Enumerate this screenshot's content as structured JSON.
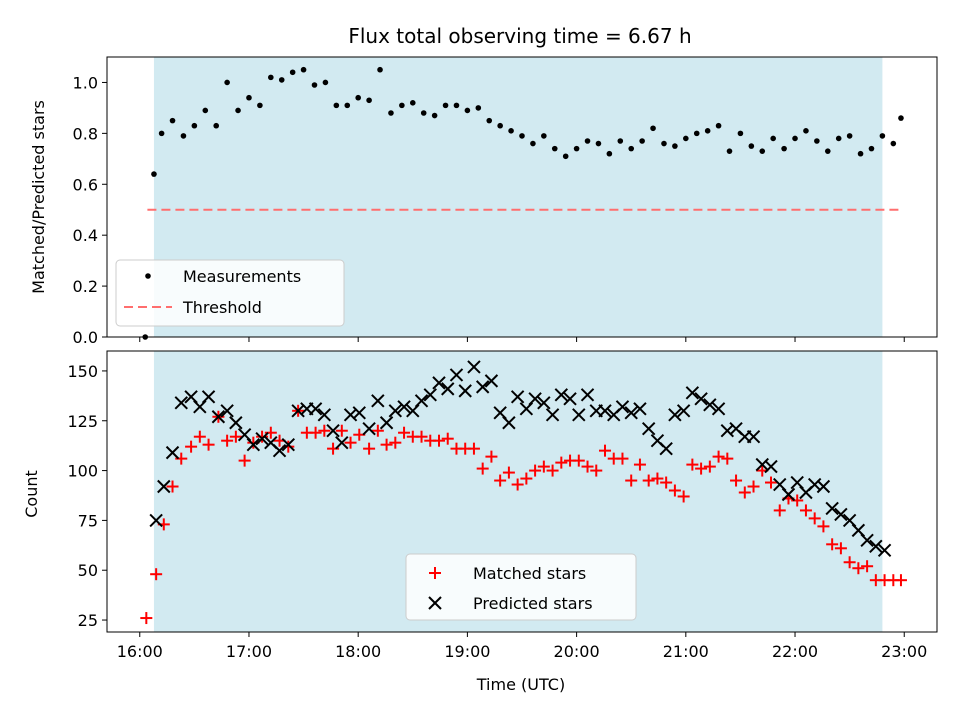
{
  "chart_data": [
    {
      "type": "scatter",
      "title": "Flux total observing time = 6.67 h",
      "ylabel": "Matched/Predicted stars",
      "xlabel": "",
      "ylim": [
        0,
        1.1
      ],
      "yticks": [
        "0.0",
        "0.2",
        "0.4",
        "0.6",
        "0.8",
        "1.0"
      ],
      "shaded_span": [
        16.13,
        22.8
      ],
      "threshold": {
        "name": "Threshold",
        "y": 0.5,
        "x_range": [
          16.07,
          22.97
        ],
        "color": "#ff6e6e"
      },
      "series": [
        {
          "name": "Measurements",
          "color": "#000000",
          "x": [
            16.05,
            16.13,
            16.2,
            16.3,
            16.4,
            16.5,
            16.6,
            16.7,
            16.8,
            16.9,
            17.0,
            17.1,
            17.2,
            17.3,
            17.4,
            17.5,
            17.6,
            17.7,
            17.8,
            17.9,
            18.0,
            18.1,
            18.2,
            18.3,
            18.4,
            18.5,
            18.6,
            18.7,
            18.8,
            18.9,
            19.0,
            19.1,
            19.2,
            19.3,
            19.4,
            19.5,
            19.6,
            19.7,
            19.8,
            19.9,
            20.0,
            20.1,
            20.2,
            20.3,
            20.4,
            20.5,
            20.6,
            20.7,
            20.8,
            20.9,
            21.0,
            21.1,
            21.2,
            21.3,
            21.4,
            21.5,
            21.6,
            21.7,
            21.8,
            21.9,
            22.0,
            22.1,
            22.2,
            22.3,
            22.4,
            22.5,
            22.6,
            22.7,
            22.8,
            22.9,
            22.97
          ],
          "y": [
            0.0,
            0.64,
            0.8,
            0.85,
            0.79,
            0.83,
            0.89,
            0.83,
            1.0,
            0.89,
            0.94,
            0.91,
            1.02,
            1.01,
            1.04,
            1.05,
            0.99,
            1.0,
            0.91,
            0.91,
            0.94,
            0.93,
            1.05,
            0.88,
            0.91,
            0.92,
            0.88,
            0.87,
            0.91,
            0.91,
            0.89,
            0.9,
            0.85,
            0.83,
            0.81,
            0.79,
            0.76,
            0.79,
            0.74,
            0.71,
            0.74,
            0.77,
            0.76,
            0.72,
            0.77,
            0.74,
            0.77,
            0.82,
            0.76,
            0.75,
            0.78,
            0.8,
            0.81,
            0.83,
            0.73,
            0.8,
            0.75,
            0.73,
            0.78,
            0.74,
            0.78,
            0.81,
            0.77,
            0.73,
            0.78,
            0.79,
            0.72,
            0.74,
            0.79,
            0.76,
            0.86
          ]
        }
      ],
      "legend": {
        "position": "lower-left",
        "entries": [
          "Measurements",
          "Threshold"
        ]
      }
    },
    {
      "type": "scatter",
      "title": "",
      "ylabel": "Count",
      "xlabel": "Time (UTC)",
      "ylim": [
        19,
        160
      ],
      "xlim": [
        15.7,
        23.3
      ],
      "yticks": [
        "25",
        "50",
        "75",
        "100",
        "125",
        "150"
      ],
      "xticks": [
        "16:00",
        "17:00",
        "18:00",
        "19:00",
        "20:00",
        "21:00",
        "22:00",
        "23:00"
      ],
      "shaded_span": [
        16.13,
        22.8
      ],
      "series": [
        {
          "name": "Matched stars",
          "color": "#ff0000",
          "marker": "+",
          "x": [
            16.06,
            16.15,
            16.22,
            16.3,
            16.38,
            16.47,
            16.55,
            16.63,
            16.72,
            16.8,
            16.88,
            16.96,
            17.04,
            17.12,
            17.2,
            17.28,
            17.36,
            17.45,
            17.53,
            17.61,
            17.69,
            17.77,
            17.85,
            17.93,
            18.01,
            18.1,
            18.18,
            18.26,
            18.34,
            18.42,
            18.5,
            18.58,
            18.66,
            18.74,
            18.82,
            18.9,
            18.98,
            19.06,
            19.14,
            19.22,
            19.3,
            19.38,
            19.46,
            19.54,
            19.62,
            19.7,
            19.78,
            19.86,
            19.94,
            20.02,
            20.1,
            20.18,
            20.26,
            20.34,
            20.42,
            20.5,
            20.58,
            20.66,
            20.74,
            20.82,
            20.9,
            20.98,
            21.06,
            21.14,
            21.22,
            21.3,
            21.38,
            21.46,
            21.54,
            21.62,
            21.7,
            21.78,
            21.86,
            21.94,
            22.02,
            22.1,
            22.18,
            22.26,
            22.34,
            22.42,
            22.5,
            22.58,
            22.66,
            22.74,
            22.82,
            22.9,
            22.97
          ],
          "y": [
            26,
            48,
            73,
            92,
            106,
            112,
            117,
            113,
            127,
            115,
            117,
            105,
            114,
            117,
            119,
            115,
            112,
            130,
            119,
            119,
            120,
            111,
            120,
            114,
            118,
            111,
            120,
            113,
            114,
            119,
            117,
            117,
            115,
            115,
            116,
            111,
            111,
            111,
            101,
            107,
            95,
            99,
            93,
            96,
            100,
            102,
            100,
            104,
            105,
            105,
            102,
            100,
            110,
            106,
            106,
            95,
            103,
            95,
            96,
            94,
            90,
            87,
            103,
            101,
            102,
            107,
            106,
            95,
            89,
            92,
            100,
            94,
            80,
            86,
            85,
            80,
            76,
            72,
            63,
            61,
            54,
            51,
            52,
            45,
            45,
            45,
            45
          ]
        },
        {
          "name": "Predicted stars",
          "color": "#000000",
          "marker": "x",
          "x": [
            16.15,
            16.22,
            16.3,
            16.38,
            16.47,
            16.55,
            16.63,
            16.72,
            16.8,
            16.88,
            16.96,
            17.04,
            17.12,
            17.2,
            17.28,
            17.36,
            17.45,
            17.53,
            17.61,
            17.69,
            17.77,
            17.85,
            17.93,
            18.01,
            18.1,
            18.18,
            18.26,
            18.34,
            18.42,
            18.5,
            18.58,
            18.66,
            18.74,
            18.82,
            18.9,
            18.98,
            19.06,
            19.14,
            19.22,
            19.3,
            19.38,
            19.46,
            19.54,
            19.62,
            19.7,
            19.78,
            19.86,
            19.94,
            20.02,
            20.1,
            20.18,
            20.26,
            20.34,
            20.42,
            20.5,
            20.58,
            20.66,
            20.74,
            20.82,
            20.9,
            20.98,
            21.06,
            21.14,
            21.22,
            21.3,
            21.38,
            21.46,
            21.54,
            21.62,
            21.7,
            21.78,
            21.86,
            21.94,
            22.02,
            22.1,
            22.18,
            22.26,
            22.34,
            22.42,
            22.5,
            22.58,
            22.66,
            22.74,
            22.82
          ],
          "y": [
            75,
            92,
            109,
            134,
            137,
            132,
            137,
            127,
            130,
            124,
            118,
            113,
            116,
            114,
            110,
            113,
            130,
            131,
            131,
            128,
            120,
            114,
            128,
            129,
            121,
            135,
            124,
            130,
            132,
            130,
            135,
            138,
            144,
            141,
            148,
            140,
            152,
            142,
            145,
            129,
            124,
            137,
            131,
            136,
            134,
            128,
            138,
            136,
            128,
            138,
            130,
            130,
            128,
            132,
            129,
            131,
            121,
            115,
            111,
            128,
            130,
            139,
            136,
            133,
            131,
            120,
            121,
            117,
            117,
            103,
            102,
            93,
            88,
            94,
            89,
            93,
            92,
            81,
            78,
            75,
            70,
            65,
            62,
            60
          ]
        }
      ],
      "legend": {
        "position": "lower-center",
        "entries": [
          "Matched stars",
          "Predicted stars"
        ]
      }
    }
  ]
}
